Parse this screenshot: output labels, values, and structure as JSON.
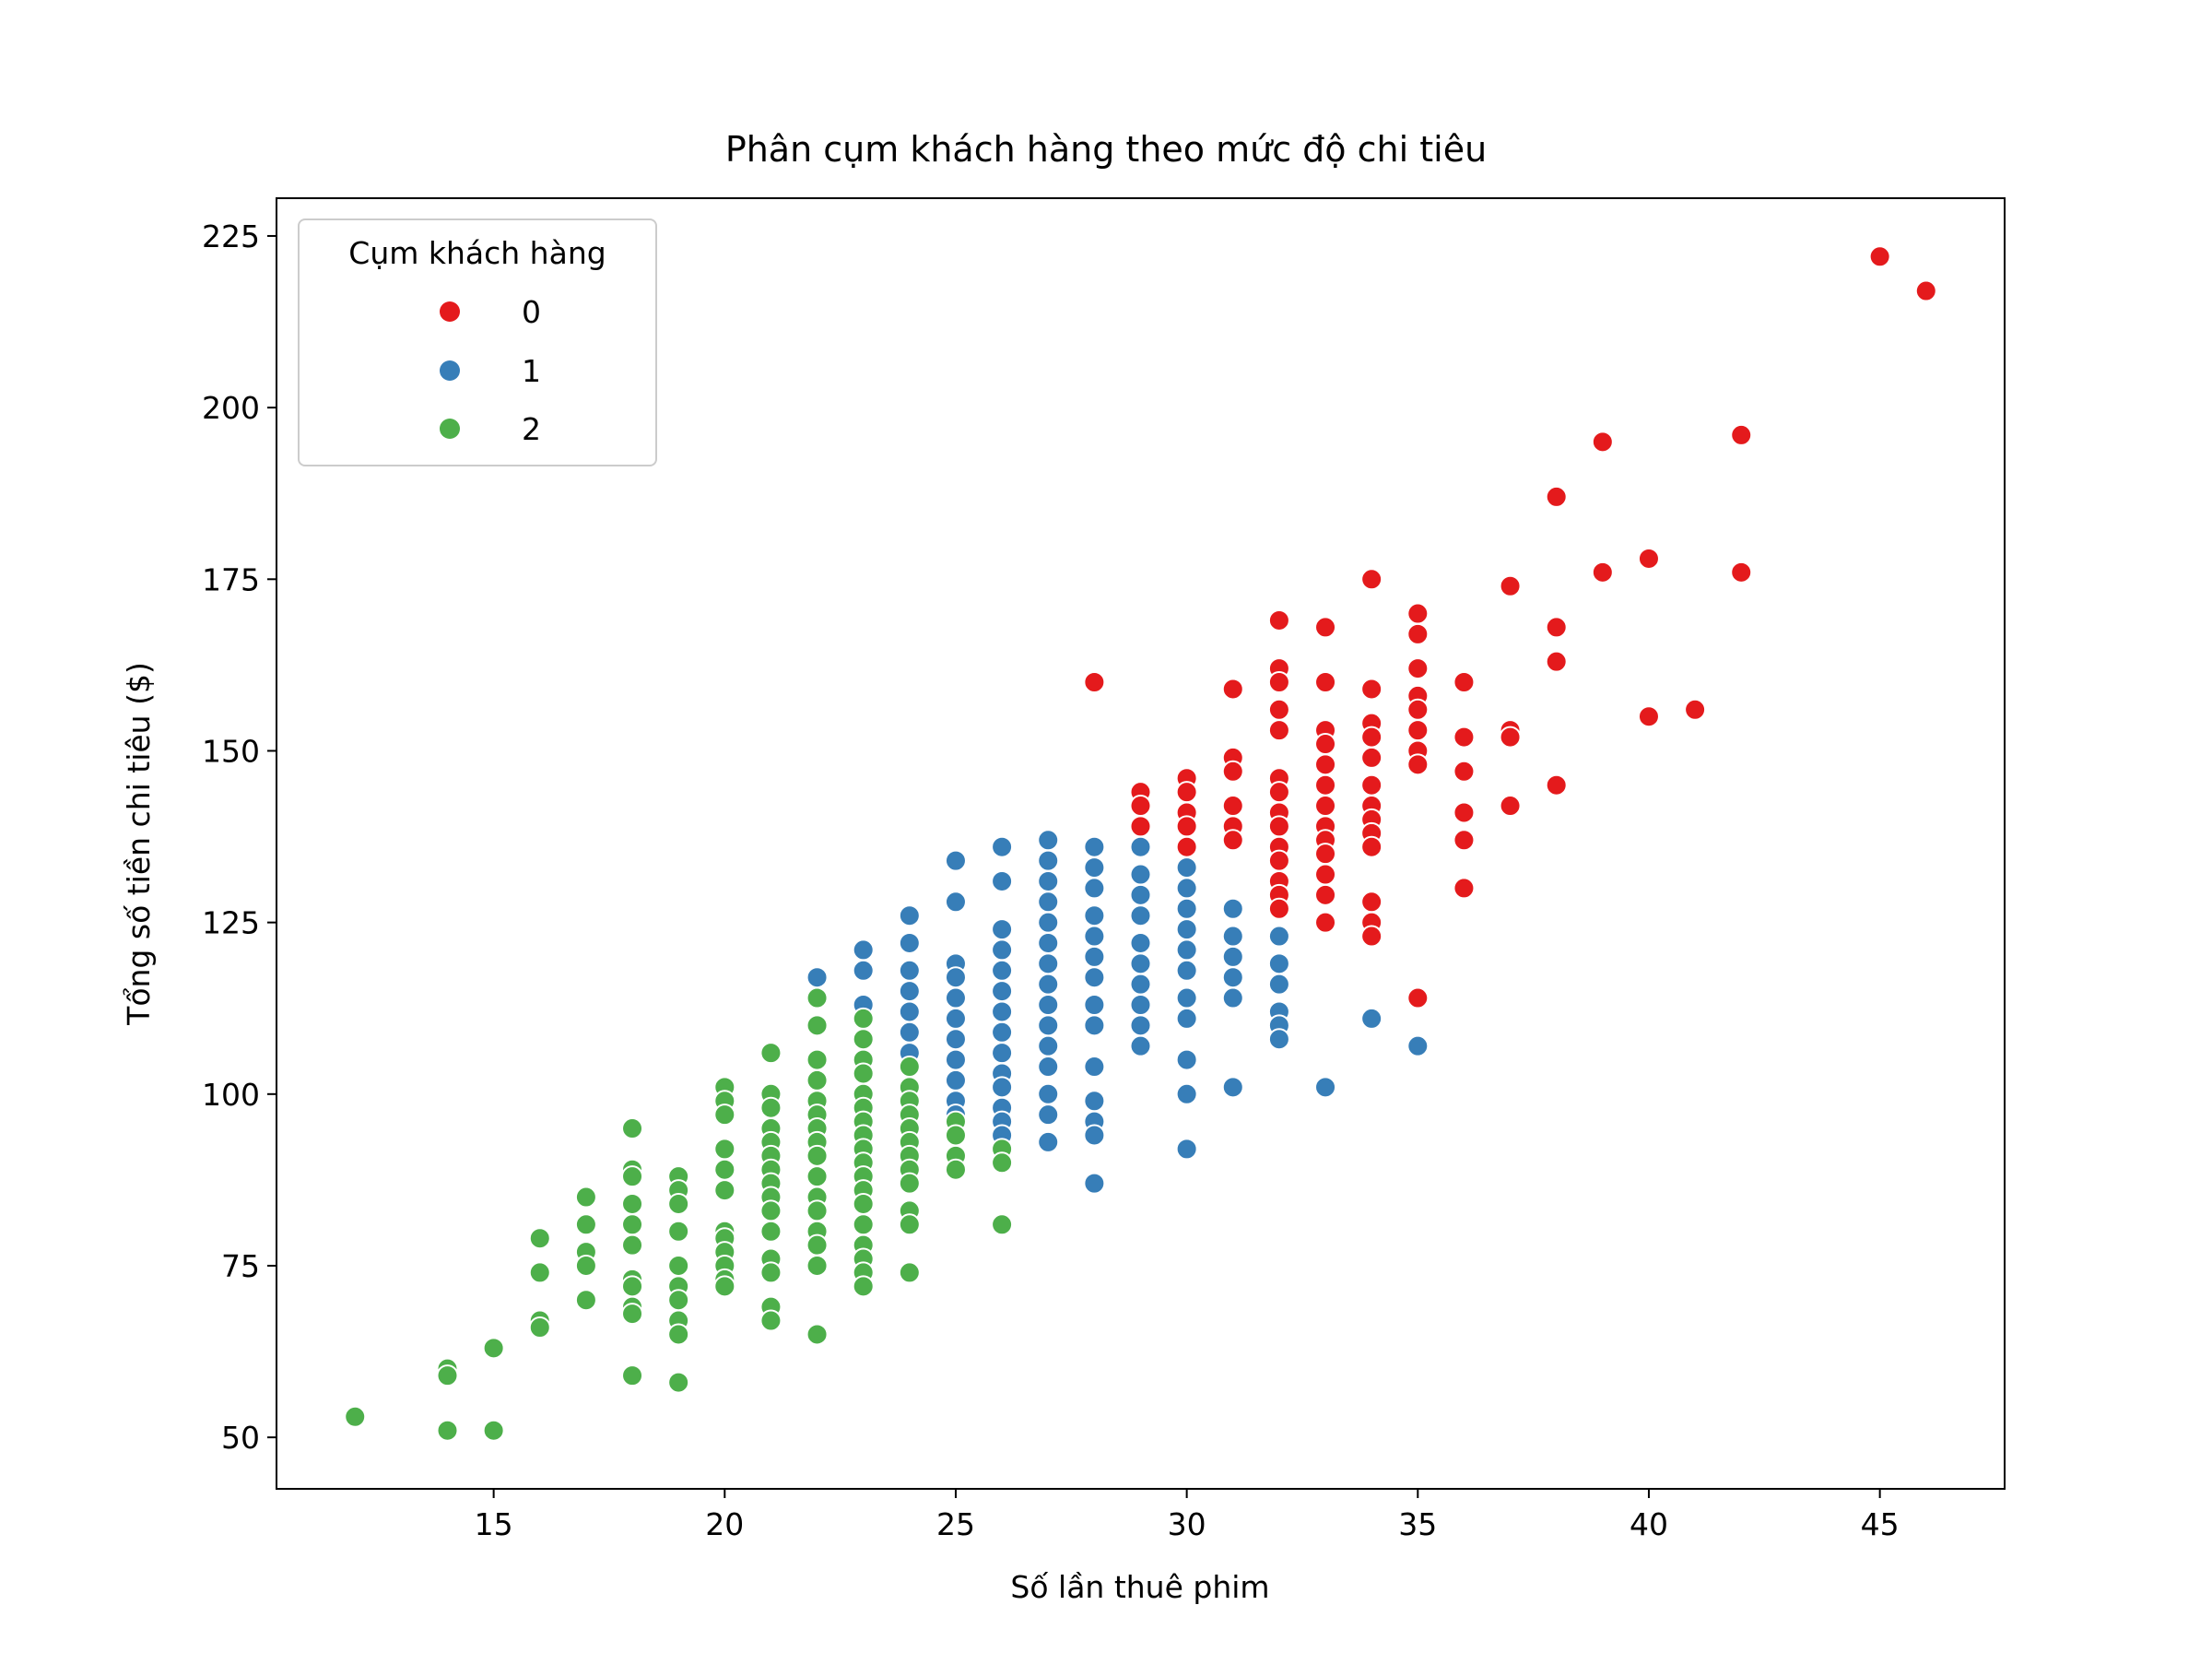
{
  "chart_data": {
    "type": "scatter",
    "title": "Phân cụm khách hàng theo mức độ chi tiêu",
    "xlabel": "Số lần thuê phim",
    "ylabel": "Tổng số tiền chi tiêu ($)",
    "xlim": [
      10.3,
      47.7
    ],
    "ylim": [
      42.5,
      230.5
    ],
    "xticks": [
      15,
      20,
      25,
      30,
      35,
      40,
      45
    ],
    "yticks": [
      50,
      75,
      100,
      125,
      150,
      175,
      200,
      225
    ],
    "grid": false,
    "legend": {
      "title": "Cụm khách hàng",
      "position": "top-left",
      "entries": [
        "0",
        "1",
        "2"
      ]
    },
    "colors": {
      "0": "#e41a1c",
      "1": "#377eb8",
      "2": "#4daf4a"
    },
    "series": [
      {
        "name": "0",
        "points": [
          [
            28,
            160
          ],
          [
            29,
            144
          ],
          [
            29,
            142
          ],
          [
            29,
            139
          ],
          [
            30,
            146
          ],
          [
            30,
            144
          ],
          [
            30,
            141
          ],
          [
            30,
            139
          ],
          [
            30,
            136
          ],
          [
            31,
            159
          ],
          [
            31,
            149
          ],
          [
            31,
            147
          ],
          [
            31,
            142
          ],
          [
            31,
            139
          ],
          [
            31,
            137
          ],
          [
            32,
            169
          ],
          [
            32,
            162
          ],
          [
            32,
            160
          ],
          [
            32,
            156
          ],
          [
            32,
            153
          ],
          [
            32,
            146
          ],
          [
            32,
            144
          ],
          [
            32,
            141
          ],
          [
            32,
            139
          ],
          [
            32,
            136
          ],
          [
            32,
            134
          ],
          [
            32,
            131
          ],
          [
            32,
            129
          ],
          [
            32,
            127
          ],
          [
            33,
            168
          ],
          [
            33,
            160
          ],
          [
            33,
            153
          ],
          [
            33,
            151
          ],
          [
            33,
            148
          ],
          [
            33,
            145
          ],
          [
            33,
            142
          ],
          [
            33,
            139
          ],
          [
            33,
            137
          ],
          [
            33,
            135
          ],
          [
            33,
            132
          ],
          [
            33,
            129
          ],
          [
            33,
            125
          ],
          [
            34,
            175
          ],
          [
            34,
            159
          ],
          [
            34,
            154
          ],
          [
            34,
            152
          ],
          [
            34,
            149
          ],
          [
            34,
            145
          ],
          [
            34,
            142
          ],
          [
            34,
            140
          ],
          [
            34,
            138
          ],
          [
            34,
            136
          ],
          [
            34,
            128
          ],
          [
            34,
            125
          ],
          [
            34,
            123
          ],
          [
            35,
            170
          ],
          [
            35,
            167
          ],
          [
            35,
            162
          ],
          [
            35,
            158
          ],
          [
            35,
            156
          ],
          [
            35,
            153
          ],
          [
            35,
            150
          ],
          [
            35,
            148
          ],
          [
            35,
            114
          ],
          [
            36,
            160
          ],
          [
            36,
            152
          ],
          [
            36,
            147
          ],
          [
            36,
            141
          ],
          [
            36,
            137
          ],
          [
            36,
            130
          ],
          [
            37,
            174
          ],
          [
            37,
            153
          ],
          [
            37,
            152
          ],
          [
            37,
            142
          ],
          [
            38,
            187
          ],
          [
            38,
            168
          ],
          [
            38,
            163
          ],
          [
            38,
            145
          ],
          [
            39,
            195
          ],
          [
            39,
            176
          ],
          [
            40,
            178
          ],
          [
            40,
            155
          ],
          [
            41,
            156
          ],
          [
            42,
            196
          ],
          [
            42,
            176
          ],
          [
            45,
            222
          ],
          [
            46,
            217
          ]
        ]
      },
      {
        "name": "1",
        "points": [
          [
            22,
            117
          ],
          [
            23,
            121
          ],
          [
            23,
            118
          ],
          [
            23,
            113
          ],
          [
            23,
            108
          ],
          [
            24,
            126
          ],
          [
            24,
            122
          ],
          [
            24,
            118
          ],
          [
            24,
            115
          ],
          [
            24,
            112
          ],
          [
            24,
            109
          ],
          [
            24,
            106
          ],
          [
            25,
            134
          ],
          [
            25,
            128
          ],
          [
            25,
            119
          ],
          [
            25,
            117
          ],
          [
            25,
            114
          ],
          [
            25,
            111
          ],
          [
            25,
            108
          ],
          [
            25,
            105
          ],
          [
            25,
            102
          ],
          [
            25,
            99
          ],
          [
            25,
            97
          ],
          [
            26,
            136
          ],
          [
            26,
            131
          ],
          [
            26,
            124
          ],
          [
            26,
            121
          ],
          [
            26,
            118
          ],
          [
            26,
            115
          ],
          [
            26,
            112
          ],
          [
            26,
            109
          ],
          [
            26,
            106
          ],
          [
            26,
            103
          ],
          [
            26,
            101
          ],
          [
            26,
            98
          ],
          [
            26,
            96
          ],
          [
            26,
            94
          ],
          [
            27,
            137
          ],
          [
            27,
            134
          ],
          [
            27,
            131
          ],
          [
            27,
            128
          ],
          [
            27,
            125
          ],
          [
            27,
            122
          ],
          [
            27,
            119
          ],
          [
            27,
            116
          ],
          [
            27,
            113
          ],
          [
            27,
            110
          ],
          [
            27,
            107
          ],
          [
            27,
            104
          ],
          [
            27,
            100
          ],
          [
            27,
            97
          ],
          [
            27,
            93
          ],
          [
            28,
            136
          ],
          [
            28,
            133
          ],
          [
            28,
            130
          ],
          [
            28,
            126
          ],
          [
            28,
            123
          ],
          [
            28,
            120
          ],
          [
            28,
            117
          ],
          [
            28,
            113
          ],
          [
            28,
            110
          ],
          [
            28,
            104
          ],
          [
            28,
            99
          ],
          [
            28,
            96
          ],
          [
            28,
            94
          ],
          [
            28,
            87
          ],
          [
            29,
            136
          ],
          [
            29,
            132
          ],
          [
            29,
            129
          ],
          [
            29,
            126
          ],
          [
            29,
            122
          ],
          [
            29,
            119
          ],
          [
            29,
            116
          ],
          [
            29,
            113
          ],
          [
            29,
            110
          ],
          [
            29,
            107
          ],
          [
            30,
            133
          ],
          [
            30,
            130
          ],
          [
            30,
            127
          ],
          [
            30,
            124
          ],
          [
            30,
            121
          ],
          [
            30,
            118
          ],
          [
            30,
            114
          ],
          [
            30,
            111
          ],
          [
            30,
            105
          ],
          [
            30,
            100
          ],
          [
            30,
            92
          ],
          [
            31,
            127
          ],
          [
            31,
            123
          ],
          [
            31,
            120
          ],
          [
            31,
            117
          ],
          [
            31,
            114
          ],
          [
            31,
            101
          ],
          [
            32,
            123
          ],
          [
            32,
            119
          ],
          [
            32,
            116
          ],
          [
            32,
            112
          ],
          [
            32,
            110
          ],
          [
            32,
            108
          ],
          [
            33,
            101
          ],
          [
            34,
            111
          ],
          [
            35,
            107
          ]
        ]
      },
      {
        "name": "2",
        "points": [
          [
            12,
            53
          ],
          [
            14,
            60
          ],
          [
            14,
            59
          ],
          [
            14,
            51
          ],
          [
            15,
            63
          ],
          [
            15,
            51
          ],
          [
            16,
            79
          ],
          [
            16,
            74
          ],
          [
            16,
            67
          ],
          [
            16,
            66
          ],
          [
            17,
            85
          ],
          [
            17,
            81
          ],
          [
            17,
            77
          ],
          [
            17,
            75
          ],
          [
            17,
            70
          ],
          [
            18,
            95
          ],
          [
            18,
            89
          ],
          [
            18,
            88
          ],
          [
            18,
            84
          ],
          [
            18,
            81
          ],
          [
            18,
            78
          ],
          [
            18,
            73
          ],
          [
            18,
            72
          ],
          [
            18,
            69
          ],
          [
            18,
            68
          ],
          [
            18,
            59
          ],
          [
            19,
            88
          ],
          [
            19,
            86
          ],
          [
            19,
            84
          ],
          [
            19,
            80
          ],
          [
            19,
            75
          ],
          [
            19,
            72
          ],
          [
            19,
            70
          ],
          [
            19,
            67
          ],
          [
            19,
            65
          ],
          [
            19,
            58
          ],
          [
            20,
            101
          ],
          [
            20,
            99
          ],
          [
            20,
            97
          ],
          [
            20,
            92
          ],
          [
            20,
            89
          ],
          [
            20,
            86
          ],
          [
            20,
            80
          ],
          [
            20,
            79
          ],
          [
            20,
            77
          ],
          [
            20,
            75
          ],
          [
            20,
            73
          ],
          [
            20,
            72
          ],
          [
            21,
            106
          ],
          [
            21,
            100
          ],
          [
            21,
            98
          ],
          [
            21,
            95
          ],
          [
            21,
            93
          ],
          [
            21,
            91
          ],
          [
            21,
            89
          ],
          [
            21,
            87
          ],
          [
            21,
            85
          ],
          [
            21,
            83
          ],
          [
            21,
            80
          ],
          [
            21,
            76
          ],
          [
            21,
            74
          ],
          [
            21,
            69
          ],
          [
            21,
            67
          ],
          [
            22,
            114
          ],
          [
            22,
            110
          ],
          [
            22,
            105
          ],
          [
            22,
            102
          ],
          [
            22,
            99
          ],
          [
            22,
            97
          ],
          [
            22,
            95
          ],
          [
            22,
            93
          ],
          [
            22,
            91
          ],
          [
            22,
            88
          ],
          [
            22,
            85
          ],
          [
            22,
            83
          ],
          [
            22,
            80
          ],
          [
            22,
            78
          ],
          [
            22,
            75
          ],
          [
            22,
            65
          ],
          [
            23,
            111
          ],
          [
            23,
            108
          ],
          [
            23,
            105
          ],
          [
            23,
            103
          ],
          [
            23,
            100
          ],
          [
            23,
            98
          ],
          [
            23,
            96
          ],
          [
            23,
            94
          ],
          [
            23,
            92
          ],
          [
            23,
            90
          ],
          [
            23,
            88
          ],
          [
            23,
            86
          ],
          [
            23,
            84
          ],
          [
            23,
            81
          ],
          [
            23,
            78
          ],
          [
            23,
            76
          ],
          [
            23,
            74
          ],
          [
            23,
            72
          ],
          [
            24,
            104
          ],
          [
            24,
            101
          ],
          [
            24,
            99
          ],
          [
            24,
            97
          ],
          [
            24,
            95
          ],
          [
            24,
            93
          ],
          [
            24,
            91
          ],
          [
            24,
            89
          ],
          [
            24,
            87
          ],
          [
            24,
            83
          ],
          [
            24,
            81
          ],
          [
            24,
            74
          ],
          [
            25,
            96
          ],
          [
            25,
            94
          ],
          [
            25,
            91
          ],
          [
            25,
            89
          ],
          [
            26,
            92
          ],
          [
            26,
            90
          ],
          [
            26,
            81
          ]
        ]
      }
    ]
  }
}
